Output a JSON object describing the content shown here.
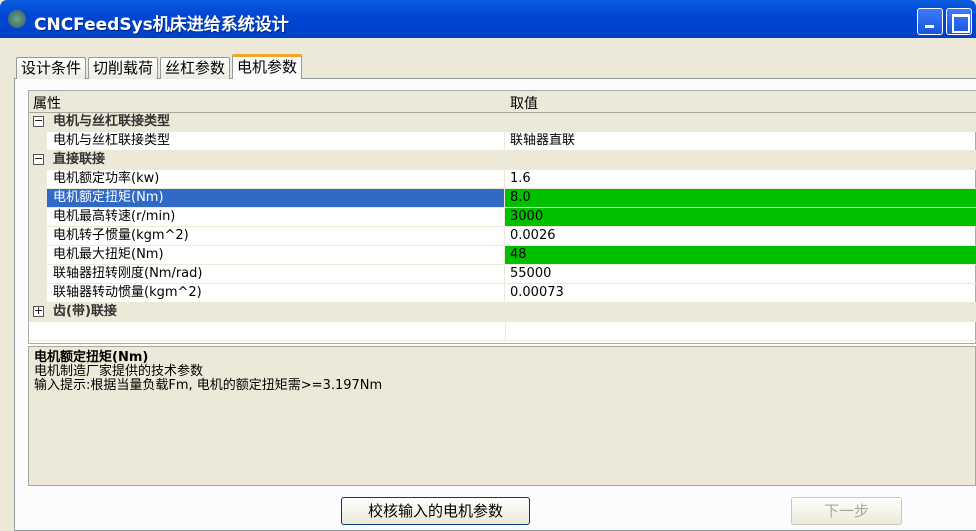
{
  "window": {
    "title": "CNCFeedSys机床进给系统设计"
  },
  "tabs": [
    {
      "label": "设计条件"
    },
    {
      "label": "切削载荷"
    },
    {
      "label": "丝杠参数"
    },
    {
      "label": "电机参数",
      "active": true
    }
  ],
  "grid": {
    "headers": {
      "property": "属性",
      "value": "取值"
    },
    "rows": [
      {
        "type": "category",
        "name": "电机与丝杠联接类型",
        "expanded": true
      },
      {
        "type": "item",
        "name": "电机与丝杠联接类型",
        "value": "联轴器直联"
      },
      {
        "type": "category",
        "name": "直接联接",
        "expanded": true
      },
      {
        "type": "item",
        "name": "电机额定功率(kw)",
        "value": "1.6"
      },
      {
        "type": "item",
        "name": "电机额定扭矩(Nm)",
        "value": "8.0",
        "selected": true,
        "highlight": true
      },
      {
        "type": "item",
        "name": "电机最高转速(r/min)",
        "value": "3000",
        "highlight": true
      },
      {
        "type": "item",
        "name": "电机转子惯量(kgm^2)",
        "value": "0.0026"
      },
      {
        "type": "item",
        "name": "电机最大扭矩(Nm)",
        "value": "48",
        "highlight": true
      },
      {
        "type": "item",
        "name": "联轴器扭转刚度(Nm/rad)",
        "value": "55000"
      },
      {
        "type": "item",
        "name": "联轴器转动惯量(kgm^2)",
        "value": "0.00073"
      },
      {
        "type": "category",
        "name": "齿(带)联接",
        "expanded": false
      }
    ],
    "highlight_color": "#00c000"
  },
  "description": {
    "title": "电机额定扭矩(Nm)",
    "line1": "电机制造厂家提供的技术参数",
    "line2": "输入提示:根据当量负载Fm, 电机的额定扭矩需>=3.197Nm"
  },
  "buttons": {
    "check": "校核输入的电机参数",
    "next": "下一步"
  }
}
